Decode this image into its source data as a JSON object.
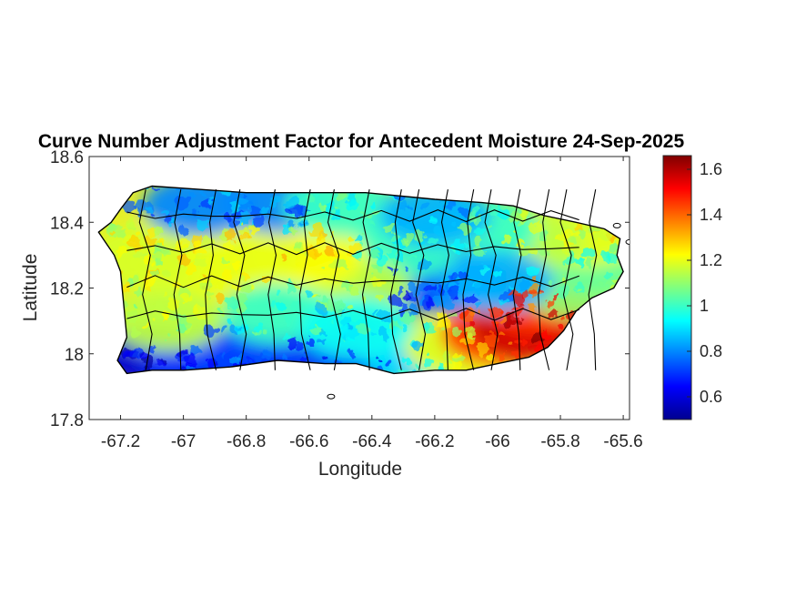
{
  "title": "Curve Number Adjustment Factor for Antecedent Moisture 24-Sep-2025",
  "xlabel": "Longitude",
  "ylabel": "Latitude",
  "x_ticks": [
    {
      "value": -67.2,
      "label": "-67.2"
    },
    {
      "value": -67.0,
      "label": "-67"
    },
    {
      "value": -66.8,
      "label": "-66.8"
    },
    {
      "value": -66.6,
      "label": "-66.6"
    },
    {
      "value": -66.4,
      "label": "-66.4"
    },
    {
      "value": -66.2,
      "label": "-66.2"
    },
    {
      "value": -66.0,
      "label": "-66"
    },
    {
      "value": -65.8,
      "label": "-65.8"
    },
    {
      "value": -65.6,
      "label": "-65.6"
    }
  ],
  "y_ticks": [
    {
      "value": 17.8,
      "label": "17.8"
    },
    {
      "value": 18.0,
      "label": "18"
    },
    {
      "value": 18.2,
      "label": "18.2"
    },
    {
      "value": 18.4,
      "label": "18.4"
    },
    {
      "value": 18.6,
      "label": "18.6"
    }
  ],
  "xlim": [
    -67.3,
    -65.58
  ],
  "ylim": [
    17.8,
    18.6
  ],
  "colorbar": {
    "colormap": "jet",
    "range": [
      0.5,
      1.66
    ],
    "ticks": [
      {
        "value": 0.6,
        "label": "0.6"
      },
      {
        "value": 0.8,
        "label": "0.8"
      },
      {
        "value": 1.0,
        "label": "1"
      },
      {
        "value": 1.2,
        "label": "1.2"
      },
      {
        "value": 1.4,
        "label": "1.4"
      },
      {
        "value": 1.6,
        "label": "1.6"
      }
    ]
  },
  "map": {
    "region": "Puerto Rico",
    "outline": [
      [
        -67.27,
        18.37
      ],
      [
        -67.23,
        18.4
      ],
      [
        -67.2,
        18.44
      ],
      [
        -67.16,
        18.49
      ],
      [
        -67.1,
        18.51
      ],
      [
        -66.95,
        18.5
      ],
      [
        -66.8,
        18.49
      ],
      [
        -66.6,
        18.49
      ],
      [
        -66.42,
        18.49
      ],
      [
        -66.2,
        18.47
      ],
      [
        -66.05,
        18.46
      ],
      [
        -65.95,
        18.45
      ],
      [
        -65.85,
        18.42
      ],
      [
        -65.75,
        18.4
      ],
      [
        -65.66,
        18.38
      ],
      [
        -65.61,
        18.35
      ],
      [
        -65.62,
        18.3
      ],
      [
        -65.6,
        18.25
      ],
      [
        -65.63,
        18.2
      ],
      [
        -65.7,
        18.17
      ],
      [
        -65.75,
        18.13
      ],
      [
        -65.79,
        18.07
      ],
      [
        -65.84,
        18.02
      ],
      [
        -65.9,
        17.99
      ],
      [
        -66.0,
        17.97
      ],
      [
        -66.1,
        17.95
      ],
      [
        -66.2,
        17.95
      ],
      [
        -66.33,
        17.94
      ],
      [
        -66.45,
        17.97
      ],
      [
        -66.55,
        17.97
      ],
      [
        -66.7,
        17.98
      ],
      [
        -66.85,
        17.96
      ],
      [
        -67.0,
        17.95
      ],
      [
        -67.1,
        17.95
      ],
      [
        -67.18,
        17.94
      ],
      [
        -67.21,
        17.98
      ],
      [
        -67.18,
        18.05
      ],
      [
        -67.19,
        18.15
      ],
      [
        -67.2,
        18.25
      ],
      [
        -67.22,
        18.3
      ],
      [
        -67.27,
        18.37
      ]
    ],
    "islets": [
      [
        -66.53,
        17.87
      ],
      [
        -65.58,
        18.34
      ],
      [
        -65.62,
        18.39
      ]
    ],
    "regions": [
      {
        "lon": -67.1,
        "lat": 17.99,
        "value": 0.6
      },
      {
        "lon": -66.95,
        "lat": 17.99,
        "value": 0.7
      },
      {
        "lon": -66.8,
        "lat": 17.99,
        "value": 0.72
      },
      {
        "lon": -66.6,
        "lat": 17.99,
        "value": 0.7
      },
      {
        "lon": -66.4,
        "lat": 18.0,
        "value": 0.72
      },
      {
        "lon": -66.25,
        "lat": 18.0,
        "value": 0.9
      },
      {
        "lon": -66.12,
        "lat": 18.02,
        "value": 1.2
      },
      {
        "lon": -66.0,
        "lat": 18.06,
        "value": 1.45
      },
      {
        "lon": -65.9,
        "lat": 18.08,
        "value": 1.58
      },
      {
        "lon": -65.83,
        "lat": 18.1,
        "value": 1.55
      },
      {
        "lon": -65.88,
        "lat": 18.16,
        "value": 1.45
      },
      {
        "lon": -65.75,
        "lat": 18.2,
        "value": 1.1
      },
      {
        "lon": -65.7,
        "lat": 18.28,
        "value": 1.05
      },
      {
        "lon": -65.72,
        "lat": 18.36,
        "value": 1.2
      },
      {
        "lon": -65.9,
        "lat": 18.34,
        "value": 1.15
      },
      {
        "lon": -66.05,
        "lat": 18.38,
        "value": 1.0
      },
      {
        "lon": -66.25,
        "lat": 18.22,
        "value": 0.72
      },
      {
        "lon": -66.15,
        "lat": 18.22,
        "value": 0.75
      },
      {
        "lon": -66.0,
        "lat": 18.22,
        "value": 0.85
      },
      {
        "lon": -66.3,
        "lat": 18.32,
        "value": 1.0
      },
      {
        "lon": -66.45,
        "lat": 18.2,
        "value": 1.15
      },
      {
        "lon": -66.6,
        "lat": 18.3,
        "value": 1.22
      },
      {
        "lon": -66.8,
        "lat": 18.3,
        "value": 1.2
      },
      {
        "lon": -67.0,
        "lat": 18.25,
        "value": 1.2
      },
      {
        "lon": -67.12,
        "lat": 18.3,
        "value": 1.18
      },
      {
        "lon": -66.95,
        "lat": 18.45,
        "value": 0.8
      },
      {
        "lon": -66.7,
        "lat": 18.46,
        "value": 0.8
      },
      {
        "lon": -66.5,
        "lat": 18.45,
        "value": 1.0
      },
      {
        "lon": -66.2,
        "lat": 18.42,
        "value": 0.85
      },
      {
        "lon": -66.7,
        "lat": 18.12,
        "value": 1.0
      },
      {
        "lon": -67.05,
        "lat": 18.1,
        "value": 1.15
      },
      {
        "lon": -66.45,
        "lat": 18.08,
        "value": 0.95
      }
    ]
  }
}
